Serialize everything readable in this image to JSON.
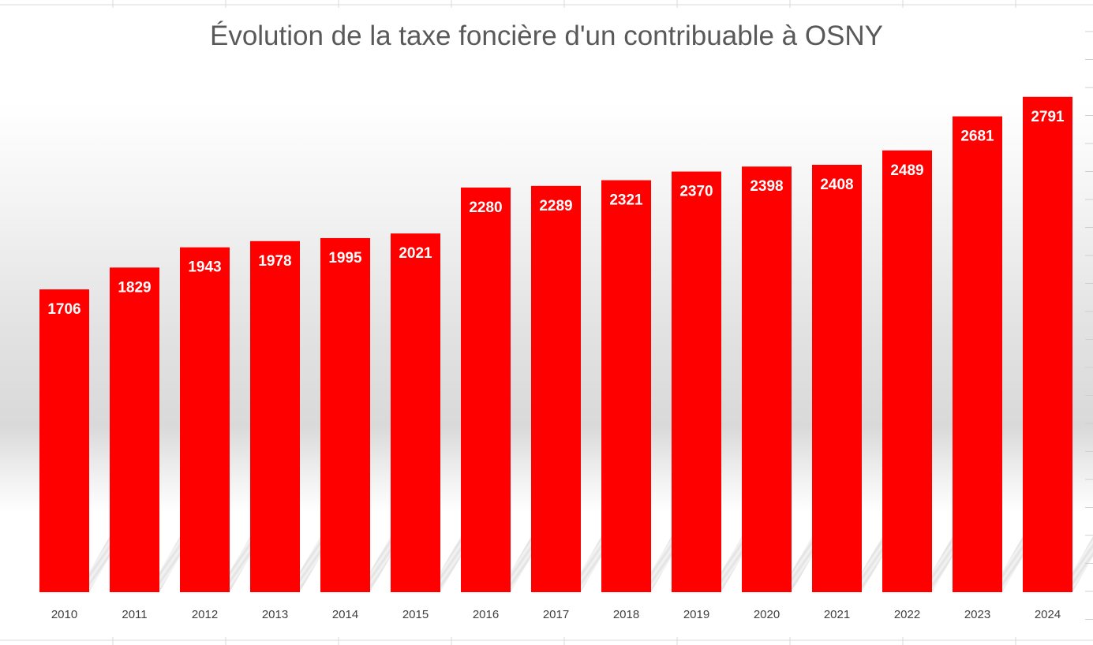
{
  "chart_data": {
    "type": "bar",
    "title": "Évolution de la taxe foncière d'un contribuable à OSNY",
    "xlabel": "",
    "ylabel": "",
    "categories": [
      "2010",
      "2011",
      "2012",
      "2013",
      "2014",
      "2015",
      "2016",
      "2017",
      "2018",
      "2019",
      "2020",
      "2021",
      "2022",
      "2023",
      "2024"
    ],
    "values": [
      1706,
      1829,
      1943,
      1978,
      1995,
      2021,
      2280,
      2289,
      2321,
      2370,
      2398,
      2408,
      2489,
      2681,
      2791
    ],
    "data_labels": [
      "1706",
      "1829",
      "1943",
      "1978",
      "1995",
      "2021",
      "2280",
      "2289",
      "2321",
      "2370",
      "2398",
      "2408",
      "2489",
      "2681",
      "2791"
    ],
    "ylim": [
      0,
      2950
    ],
    "grid": false,
    "legend": "none",
    "colors": {
      "bar": "#ff0000",
      "label": "#ffffff",
      "title": "#595959",
      "ticks": "#404040"
    }
  }
}
